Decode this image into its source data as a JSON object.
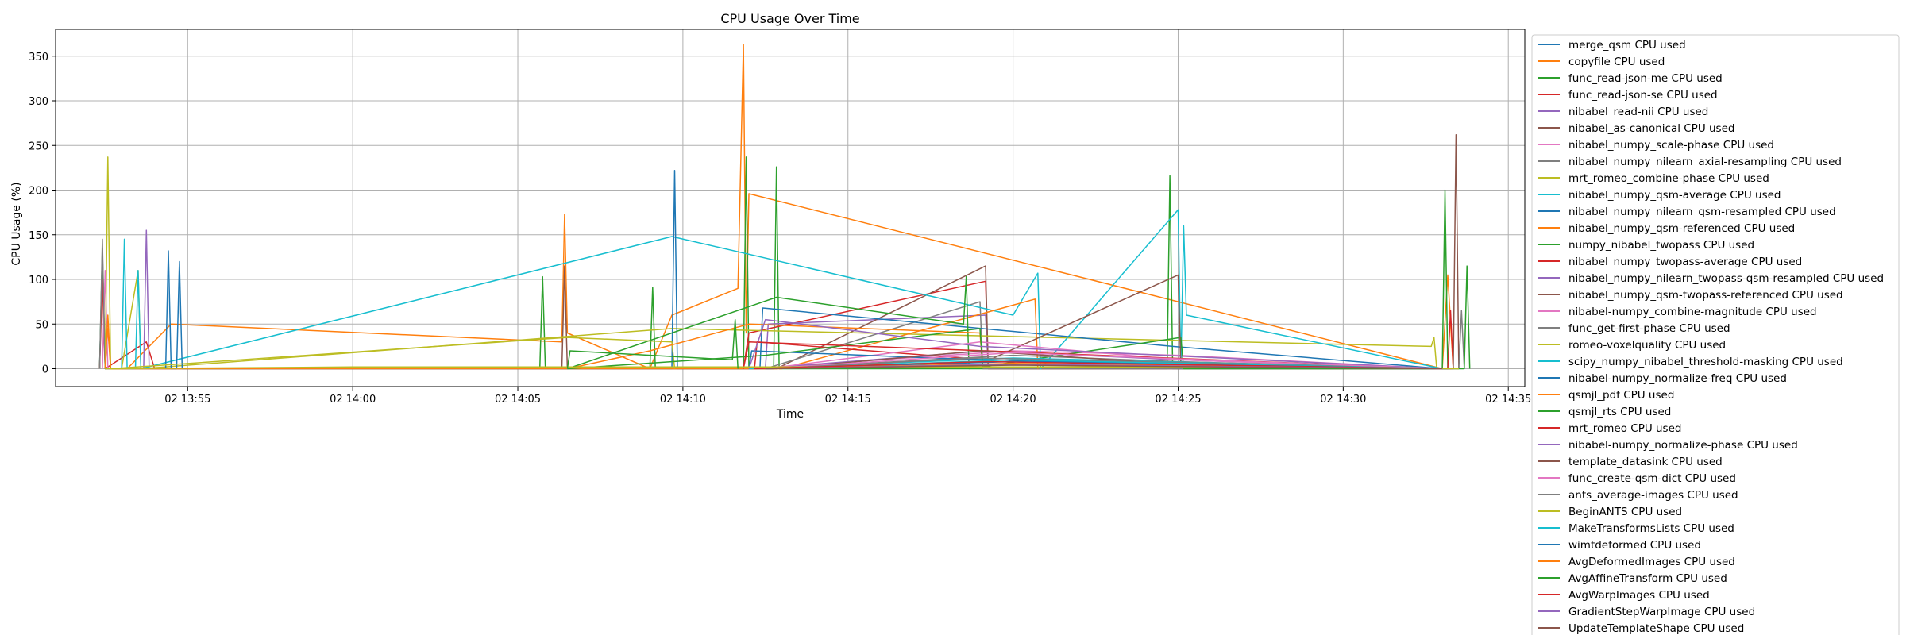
{
  "chart_data": {
    "type": "line",
    "title": "CPU Usage Over Time",
    "xlabel": "Time",
    "ylabel": "CPU Usage (%)",
    "xlim": [
      "02 13:51:00",
      "02 14:35:30"
    ],
    "ylim": [
      -20,
      380
    ],
    "x_ticks": [
      "02 13:55",
      "02 14:00",
      "02 14:05",
      "02 14:10",
      "02 14:15",
      "02 14:20",
      "02 14:25",
      "02 14:30",
      "02 14:35"
    ],
    "y_ticks": [
      0,
      50,
      100,
      150,
      200,
      250,
      300,
      350
    ],
    "grid": true,
    "legend_position": "outside-right",
    "colors": [
      "#1f77b4",
      "#ff7f0e",
      "#2ca02c",
      "#d62728",
      "#9467bd",
      "#8c564b",
      "#e377c2",
      "#7f7f7f",
      "#bcbd22",
      "#17becf"
    ],
    "series": [
      {
        "name": "merge_qsm CPU used",
        "points": [
          [
            "02 13:52:20",
            0
          ],
          [
            "02 13:52:25",
            130
          ],
          [
            "02 13:52:30",
            0
          ]
        ]
      },
      {
        "name": "copyfile CPU used",
        "points": [
          [
            "02 13:52:30",
            0
          ],
          [
            "02 13:52:35",
            45
          ],
          [
            "02 13:52:40",
            0
          ],
          [
            "02 13:53:10",
            0
          ],
          [
            "02 13:54:30",
            50
          ],
          [
            "02 14:06:20",
            30
          ],
          [
            "02 14:06:25",
            173
          ],
          [
            "02 14:06:30",
            40
          ],
          [
            "02 14:09:00",
            0
          ],
          [
            "02 14:09:40",
            60
          ],
          [
            "02 14:11:40",
            90
          ],
          [
            "02 14:11:50",
            363
          ],
          [
            "02 14:11:55",
            40
          ],
          [
            "02 14:12:00",
            196
          ],
          [
            "02 14:25:00",
            75
          ],
          [
            "02 14:33:00",
            0
          ],
          [
            "02 14:33:10",
            105
          ],
          [
            "02 14:33:20",
            0
          ]
        ]
      },
      {
        "name": "func_read-json-me CPU used",
        "points": [
          [
            "02 13:52:20",
            0
          ],
          [
            "02 13:52:25",
            135
          ],
          [
            "02 13:52:30",
            0
          ],
          [
            "02 14:05:40",
            0
          ],
          [
            "02 14:05:45",
            103
          ],
          [
            "02 14:05:50",
            0
          ],
          [
            "02 14:09:00",
            0
          ],
          [
            "02 14:09:05",
            91
          ],
          [
            "02 14:09:10",
            0
          ],
          [
            "02 14:11:50",
            0
          ],
          [
            "02 14:11:55",
            237
          ],
          [
            "02 14:12:00",
            0
          ],
          [
            "02 14:12:45",
            0
          ],
          [
            "02 14:12:50",
            226
          ],
          [
            "02 14:12:55",
            0
          ],
          [
            "02 14:24:40",
            0
          ],
          [
            "02 14:24:45",
            216
          ],
          [
            "02 14:24:50",
            0
          ],
          [
            "02 14:33:00",
            0
          ],
          [
            "02 14:33:05",
            200
          ],
          [
            "02 14:33:10",
            0
          ]
        ]
      },
      {
        "name": "func_read-json-se CPU used",
        "points": [
          [
            "02 13:52:20",
            0
          ],
          [
            "02 13:52:25",
            100
          ],
          [
            "02 13:52:30",
            0
          ],
          [
            "02 13:53:45",
            30
          ],
          [
            "02 13:54:00",
            0
          ],
          [
            "02 14:11:50",
            0
          ],
          [
            "02 14:12:00",
            40
          ],
          [
            "02 14:19:10",
            98
          ],
          [
            "02 14:19:15",
            0
          ],
          [
            "02 14:33:10",
            0
          ],
          [
            "02 14:33:15",
            65
          ],
          [
            "02 14:33:20",
            0
          ]
        ]
      },
      {
        "name": "nibabel_read-nii CPU used",
        "points": [
          [
            "02 13:53:40",
            0
          ],
          [
            "02 13:53:45",
            155
          ],
          [
            "02 13:53:50",
            0
          ],
          [
            "02 14:12:30",
            0
          ],
          [
            "02 14:12:35",
            50
          ],
          [
            "02 14:19:10",
            60
          ],
          [
            "02 14:19:15",
            0
          ]
        ]
      },
      {
        "name": "nibabel_as-canonical CPU used",
        "points": [
          [
            "02 14:06:20",
            0
          ],
          [
            "02 14:06:25",
            115
          ],
          [
            "02 14:06:30",
            0
          ],
          [
            "02 14:12:50",
            0
          ],
          [
            "02 14:19:10",
            115
          ],
          [
            "02 14:19:15",
            0
          ],
          [
            "02 14:33:20",
            0
          ],
          [
            "02 14:33:25",
            262
          ],
          [
            "02 14:33:30",
            0
          ]
        ]
      },
      {
        "name": "nibabel_numpy_scale-phase CPU used",
        "points": [
          [
            "02 13:52:25",
            0
          ],
          [
            "02 13:52:30",
            110
          ],
          [
            "02 13:52:35",
            0
          ],
          [
            "02 14:12:00",
            0
          ],
          [
            "02 14:20:00",
            20
          ],
          [
            "02 14:25:00",
            15
          ],
          [
            "02 14:33:00",
            0
          ]
        ]
      },
      {
        "name": "nibabel_numpy_nilearn_axial-resampling CPU used",
        "points": [
          [
            "02 13:52:20",
            0
          ],
          [
            "02 13:52:25",
            145
          ],
          [
            "02 13:52:30",
            0
          ],
          [
            "02 14:12:30",
            0
          ],
          [
            "02 14:19:00",
            75
          ],
          [
            "02 14:19:05",
            0
          ],
          [
            "02 14:33:30",
            0
          ],
          [
            "02 14:33:35",
            65
          ],
          [
            "02 14:33:40",
            0
          ]
        ]
      },
      {
        "name": "mrt_romeo_combine-phase CPU used",
        "points": [
          [
            "02 13:52:30",
            0
          ],
          [
            "02 13:52:35",
            237
          ],
          [
            "02 13:52:40",
            0
          ],
          [
            "02 13:53:00",
            0
          ],
          [
            "02 13:53:30",
            110
          ],
          [
            "02 13:53:35",
            0
          ],
          [
            "02 14:09:40",
            45
          ],
          [
            "02 14:32:40",
            25
          ],
          [
            "02 14:32:45",
            35
          ],
          [
            "02 14:32:50",
            0
          ]
        ]
      },
      {
        "name": "nibabel_numpy_qsm-average CPU used",
        "points": [
          [
            "02 13:53:00",
            0
          ],
          [
            "02 13:53:05",
            145
          ],
          [
            "02 13:53:10",
            0
          ],
          [
            "02 13:53:25",
            0
          ],
          [
            "02 13:53:30",
            110
          ],
          [
            "02 13:53:35",
            0
          ],
          [
            "02 14:09:40",
            148
          ],
          [
            "02 14:20:00",
            60
          ],
          [
            "02 14:20:45",
            107
          ],
          [
            "02 14:20:50",
            0
          ],
          [
            "02 14:25:00",
            178
          ],
          [
            "02 14:25:05",
            0
          ],
          [
            "02 14:25:10",
            160
          ],
          [
            "02 14:25:15",
            60
          ],
          [
            "02 14:33:00",
            0
          ]
        ]
      },
      {
        "name": "nibabel_numpy_nilearn_qsm-resampled CPU used",
        "points": [
          [
            "02 13:54:20",
            0
          ],
          [
            "02 13:54:25",
            132
          ],
          [
            "02 13:54:30",
            0
          ],
          [
            "02 13:54:40",
            0
          ],
          [
            "02 13:54:45",
            120
          ],
          [
            "02 13:54:50",
            0
          ],
          [
            "02 14:09:40",
            0
          ],
          [
            "02 14:09:45",
            222
          ],
          [
            "02 14:09:50",
            0
          ],
          [
            "02 14:12:20",
            0
          ],
          [
            "02 14:12:25",
            68
          ],
          [
            "02 14:24:50",
            25
          ],
          [
            "02 14:33:00",
            0
          ]
        ]
      },
      {
        "name": "nibabel_numpy_qsm-referenced CPU used",
        "points": [
          [
            "02 13:52:30",
            0
          ],
          [
            "02 13:52:35",
            60
          ],
          [
            "02 13:52:40",
            0
          ],
          [
            "02 14:13:00",
            0
          ],
          [
            "02 14:20:40",
            78
          ],
          [
            "02 14:20:45",
            0
          ]
        ]
      },
      {
        "name": "numpy_nibabel_twopass CPU used",
        "points": [
          [
            "02 14:06:30",
            0
          ],
          [
            "02 14:12:50",
            80
          ],
          [
            "02 14:18:30",
            50
          ],
          [
            "02 14:18:35",
            103
          ],
          [
            "02 14:18:40",
            0
          ],
          [
            "02 14:25:05",
            35
          ],
          [
            "02 14:25:10",
            0
          ],
          [
            "02 14:33:40",
            0
          ],
          [
            "02 14:33:45",
            115
          ],
          [
            "02 14:33:50",
            0
          ]
        ]
      },
      {
        "name": "nibabel_numpy_twopass-average CPU used",
        "points": [
          [
            "02 14:12:10",
            0
          ],
          [
            "02 14:12:15",
            30
          ],
          [
            "02 14:19:10",
            10
          ],
          [
            "02 14:33:20",
            0
          ]
        ]
      },
      {
        "name": "nibabel_numpy_nilearn_twopass-qsm-resampled CPU used",
        "points": [
          [
            "02 14:12:15",
            0
          ],
          [
            "02 14:19:10",
            20
          ],
          [
            "02 14:25:00",
            10
          ],
          [
            "02 14:33:20",
            0
          ]
        ]
      },
      {
        "name": "nibabel_numpy_qsm-twopass-referenced CPU used",
        "points": [
          [
            "02 14:12:30",
            0
          ],
          [
            "02 14:19:10",
            8
          ],
          [
            "02 14:25:00",
            105
          ],
          [
            "02 14:25:05",
            0
          ]
        ]
      },
      {
        "name": "nibabel-numpy_combine-magnitude CPU used",
        "points": [
          [
            "02 14:12:30",
            0
          ],
          [
            "02 14:19:00",
            30
          ],
          [
            "02 14:25:00",
            10
          ],
          [
            "02 14:33:00",
            0
          ]
        ]
      },
      {
        "name": "func_get-first-phase CPU used",
        "points": [
          [
            "02 14:12:30",
            0
          ],
          [
            "02 14:20:00",
            15
          ],
          [
            "02 14:25:00",
            8
          ],
          [
            "02 14:33:00",
            0
          ]
        ]
      },
      {
        "name": "romeo-voxelquality CPU used",
        "points": [
          [
            "02 13:52:40",
            0
          ],
          [
            "02 14:06:30",
            35
          ],
          [
            "02 14:09:40",
            30
          ],
          [
            "02 14:09:45",
            0
          ]
        ]
      },
      {
        "name": "scipy_numpy_nibabel_threshold-masking CPU used",
        "points": [
          [
            "02 14:12:00",
            0
          ],
          [
            "02 14:20:00",
            12
          ],
          [
            "02 14:33:00",
            0
          ]
        ]
      },
      {
        "name": "nibabel-numpy_normalize-freq CPU used",
        "points": [
          [
            "02 14:12:00",
            0
          ],
          [
            "02 14:12:05",
            20
          ],
          [
            "02 14:19:00",
            10
          ],
          [
            "02 14:33:00",
            0
          ]
        ]
      },
      {
        "name": "qsmjl_pdf CPU used",
        "points": [
          [
            "02 14:06:30",
            0
          ],
          [
            "02 14:09:00",
            20
          ],
          [
            "02 14:12:00",
            50
          ],
          [
            "02 14:19:00",
            40
          ],
          [
            "02 14:19:05",
            0
          ]
        ]
      },
      {
        "name": "qsmjl_rts CPU used",
        "points": [
          [
            "02 14:06:30",
            0
          ],
          [
            "02 14:12:30",
            15
          ],
          [
            "02 14:19:00",
            45
          ],
          [
            "02 14:19:05",
            0
          ]
        ]
      },
      {
        "name": "mrt_romeo CPU used",
        "points": [
          [
            "02 14:11:50",
            0
          ],
          [
            "02 14:12:00",
            30
          ],
          [
            "02 14:19:10",
            20
          ],
          [
            "02 14:33:00",
            0
          ]
        ]
      },
      {
        "name": "nibabel-numpy_normalize-phase CPU used",
        "points": [
          [
            "02 14:12:00",
            0
          ],
          [
            "02 14:12:30",
            55
          ],
          [
            "02 14:19:00",
            25
          ],
          [
            "02 14:33:00",
            0
          ]
        ]
      },
      {
        "name": "template_datasink CPU used",
        "points": [
          [
            "02 14:12:50",
            0
          ],
          [
            "02 14:19:00",
            20
          ],
          [
            "02 14:25:00",
            5
          ],
          [
            "02 14:33:00",
            0
          ]
        ]
      },
      {
        "name": "func_create-qsm-dict CPU used",
        "points": [
          [
            "02 14:12:30",
            0
          ],
          [
            "02 14:20:00",
            18
          ],
          [
            "02 14:33:00",
            0
          ]
        ]
      },
      {
        "name": "ants_average-images CPU used",
        "points": [
          [
            "02 14:12:30",
            0
          ],
          [
            "02 14:19:00",
            12
          ],
          [
            "02 14:33:00",
            0
          ]
        ]
      },
      {
        "name": "BeginANTS CPU used",
        "points": [
          [
            "02 13:52:30",
            0
          ],
          [
            "02 14:00:00",
            2
          ],
          [
            "02 14:10:00",
            2
          ],
          [
            "02 14:20:00",
            2
          ],
          [
            "02 14:30:00",
            2
          ],
          [
            "02 14:33:30",
            0
          ]
        ]
      },
      {
        "name": "MakeTransformsLists CPU used",
        "points": [
          [
            "02 14:12:30",
            0
          ],
          [
            "02 14:20:00",
            10
          ],
          [
            "02 14:33:00",
            0
          ]
        ]
      },
      {
        "name": "wimtdeformed CPU used",
        "points": [
          [
            "02 14:12:30",
            0
          ],
          [
            "02 14:20:00",
            8
          ],
          [
            "02 14:33:00",
            0
          ]
        ]
      },
      {
        "name": "AvgDeformedImages CPU used",
        "points": [
          [
            "02 14:12:30",
            0
          ],
          [
            "02 14:20:00",
            6
          ],
          [
            "02 14:33:00",
            0
          ]
        ]
      },
      {
        "name": "AvgAffineTransform CPU used",
        "points": [
          [
            "02 14:06:30",
            0
          ],
          [
            "02 14:06:35",
            20
          ],
          [
            "02 14:11:30",
            10
          ],
          [
            "02 14:11:35",
            55
          ],
          [
            "02 14:11:40",
            0
          ]
        ]
      },
      {
        "name": "AvgWarpImages CPU used",
        "points": [
          [
            "02 14:12:10",
            0
          ],
          [
            "02 14:19:10",
            8
          ],
          [
            "02 14:33:00",
            0
          ]
        ]
      },
      {
        "name": "GradientStepWarpImage CPU used",
        "points": [
          [
            "02 14:12:30",
            0
          ],
          [
            "02 14:20:00",
            5
          ],
          [
            "02 14:33:00",
            0
          ]
        ]
      },
      {
        "name": "UpdateTemplateShape CPU used",
        "points": [
          [
            "02 14:12:30",
            0
          ],
          [
            "02 14:20:00",
            4
          ],
          [
            "02 14:33:00",
            0
          ]
        ]
      }
    ]
  }
}
